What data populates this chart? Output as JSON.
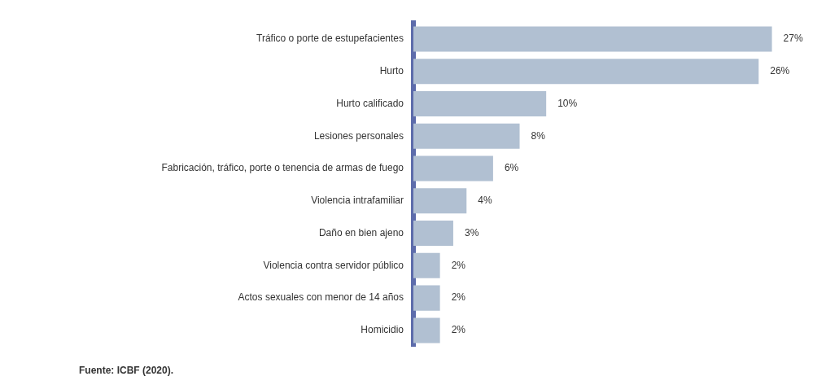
{
  "chart_data": {
    "type": "bar",
    "orientation": "horizontal",
    "categories": [
      "Tráfico o porte de estupefacientes",
      "Hurto",
      "Hurto calificado",
      "Lesiones personales",
      "Fabricación, tráfico, porte o tenencia de armas de fuego",
      "Violencia intrafamiliar",
      "Daño en bien ajeno",
      "Violencia contra servidor público",
      "Actos sexuales con menor de 14 años",
      "Homicidio"
    ],
    "values": [
      27,
      26,
      10,
      8,
      6,
      4,
      3,
      2,
      2,
      2
    ],
    "value_labels": [
      "27%",
      "26%",
      "10%",
      "8%",
      "6%",
      "4%",
      "3%",
      "2%",
      "2%",
      "2%"
    ],
    "color": "#b1c0d2",
    "legend": false,
    "annotations": [
      "Fuente: ICBF (2020)."
    ]
  }
}
